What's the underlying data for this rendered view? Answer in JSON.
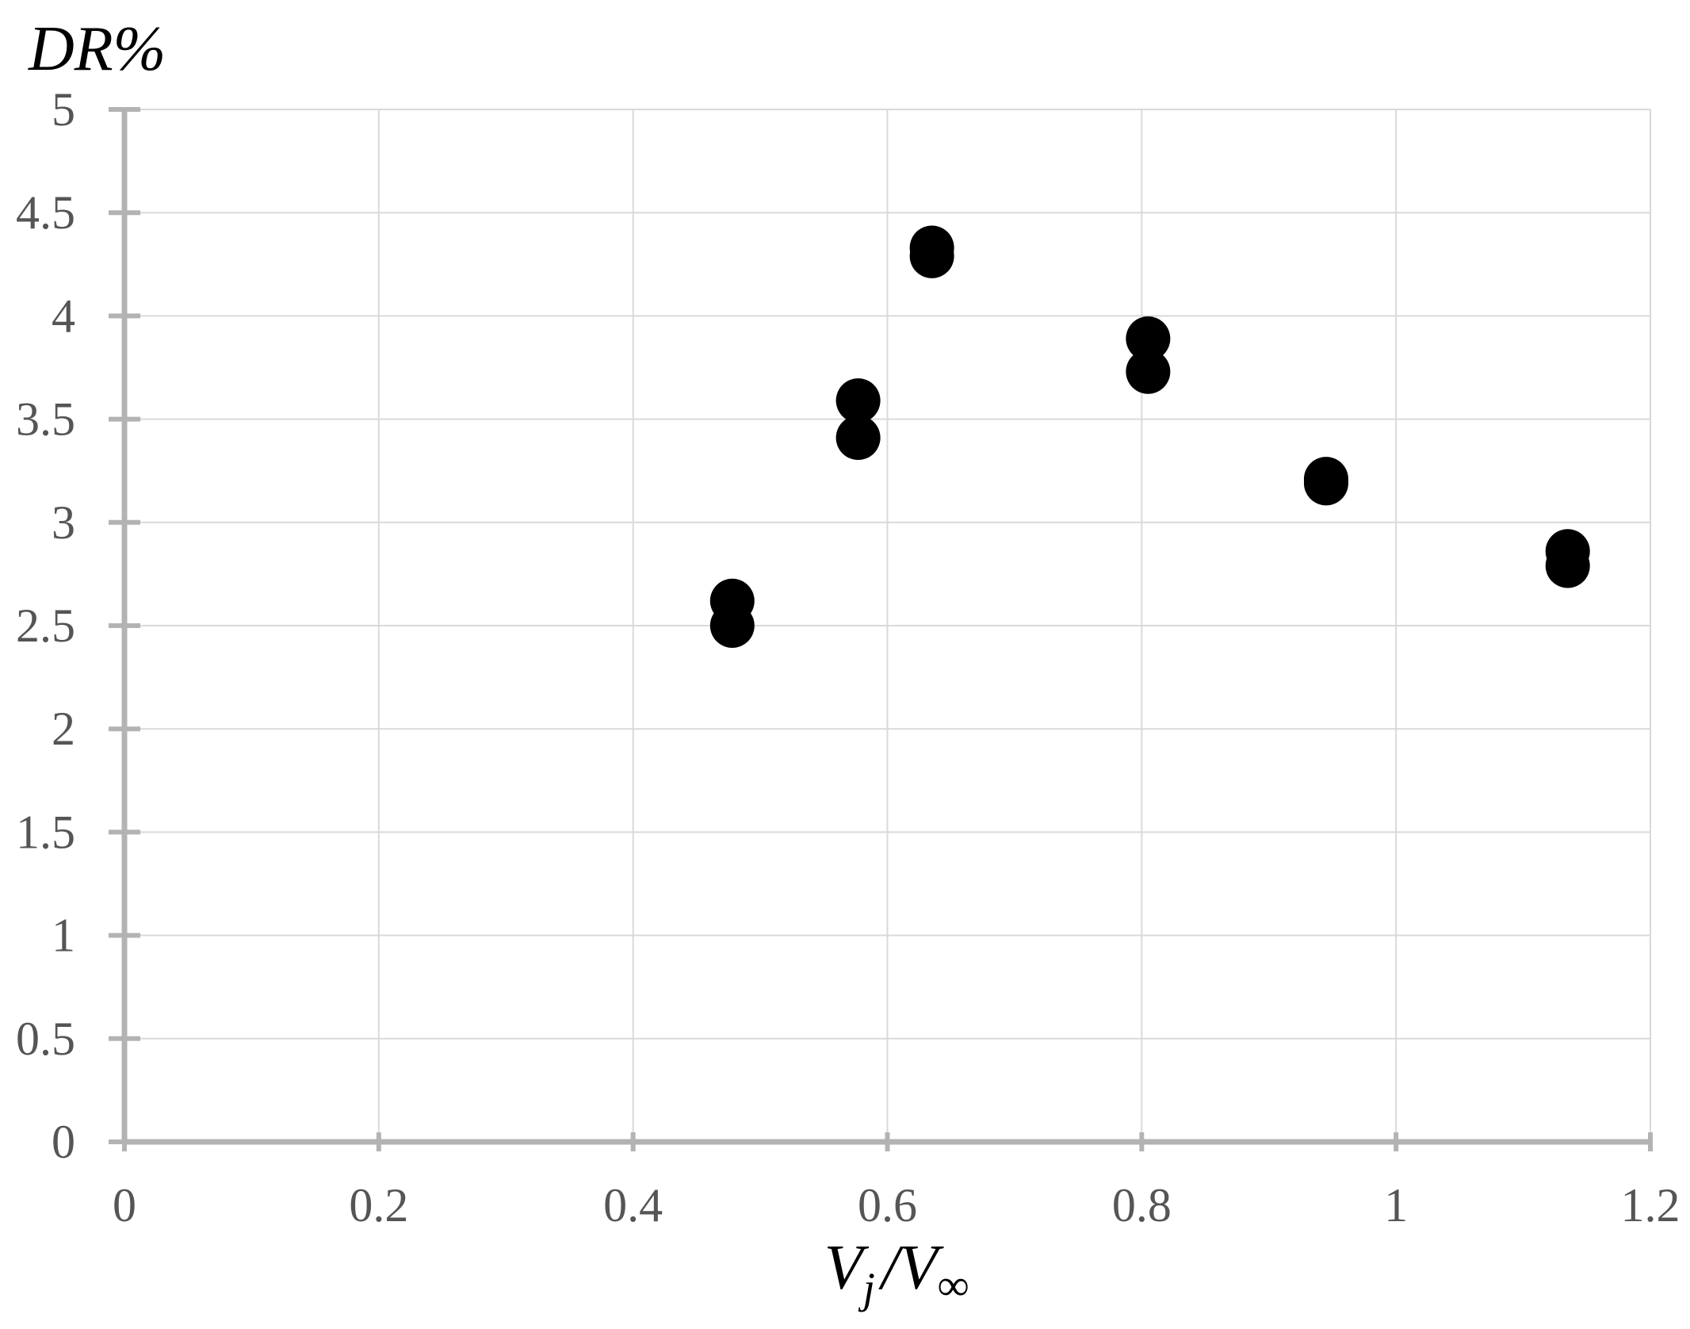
{
  "chart_data": {
    "type": "scatter",
    "title": "",
    "ylabel": "DR%",
    "xlabel": {
      "base": "V",
      "sub": "j",
      "sep": "/",
      "base2": "V",
      "sub2": "∞"
    },
    "xlim": [
      0,
      1.2
    ],
    "ylim": [
      0,
      5
    ],
    "x_ticks": [
      "0",
      "0.2",
      "0.4",
      "0.6",
      "0.8",
      "1",
      "1.2"
    ],
    "y_ticks": [
      "0",
      "0.5",
      "1",
      "1.5",
      "2",
      "2.5",
      "3",
      "3.5",
      "4",
      "4.5",
      "5"
    ],
    "grid": true,
    "legend": "none",
    "marker_color": "#000000",
    "series": [
      {
        "points": [
          {
            "x": 0.478,
            "y": 2.62
          },
          {
            "x": 0.478,
            "y": 2.5
          },
          {
            "x": 0.577,
            "y": 3.59
          },
          {
            "x": 0.577,
            "y": 3.41
          },
          {
            "x": 0.635,
            "y": 4.33
          },
          {
            "x": 0.635,
            "y": 4.29
          },
          {
            "x": 0.805,
            "y": 3.89
          },
          {
            "x": 0.805,
            "y": 3.73
          },
          {
            "x": 0.945,
            "y": 3.21
          },
          {
            "x": 0.945,
            "y": 3.19
          },
          {
            "x": 1.135,
            "y": 2.86
          },
          {
            "x": 1.135,
            "y": 2.79
          }
        ]
      }
    ]
  }
}
